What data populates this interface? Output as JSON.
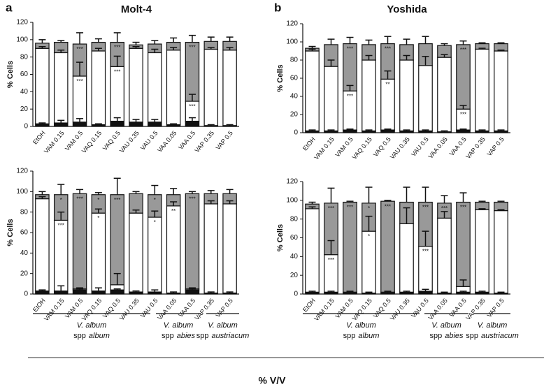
{
  "groups": [
    {
      "genus": "V. album",
      "rank": "spp",
      "name": "album"
    },
    {
      "genus": "V. album",
      "rank": "spp",
      "name": "abies"
    },
    {
      "genus": "V. album",
      "rank": "spp",
      "name": "austriacum"
    }
  ],
  "x_label": "% V/V",
  "chart_data": [
    {
      "type": "stacked_bar",
      "panel": "a",
      "title": "Molt-4",
      "y_label": "% Cells",
      "categories": [
        "EtOH",
        "VAM 0.15",
        "VAM 0.5",
        "VAQ 0.15",
        "VAQ 0.5",
        "VAU 0.35",
        "VAU 0.5",
        "VAA 0.05",
        "VAA 0.5",
        "VAP 0.35",
        "VAP 0.5"
      ],
      "ylim": [
        0,
        120
      ],
      "yticks": [
        0,
        20,
        40,
        60,
        80,
        100,
        120
      ],
      "series": [
        {
          "color": "#111111",
          "values": [
            3,
            4,
            5,
            2,
            6,
            5,
            5,
            2,
            6,
            1,
            1
          ],
          "errors": [
            1,
            3,
            4,
            1,
            4,
            3,
            3,
            1,
            4,
            1,
            1
          ]
        },
        {
          "color": "#ffffff",
          "values": [
            87,
            81,
            53,
            85,
            63,
            85,
            80,
            86,
            23,
            88,
            87
          ],
          "errors": [
            2,
            3,
            16,
            3,
            12,
            2,
            4,
            3,
            8,
            2,
            3
          ],
          "significance": [
            null,
            null,
            "***",
            null,
            "***",
            null,
            null,
            null,
            "***",
            null,
            null
          ]
        },
        {
          "color": "#999999",
          "values": [
            6,
            12,
            37,
            10,
            28,
            4,
            10,
            9,
            68,
            9,
            10
          ],
          "errors": [
            4,
            2,
            13,
            4,
            11,
            3,
            4,
            5,
            8,
            5,
            5
          ],
          "significance": [
            null,
            null,
            "***",
            null,
            "***",
            null,
            null,
            null,
            "***",
            null,
            null
          ]
        }
      ]
    },
    {
      "type": "stacked_bar",
      "panel": "b",
      "title": "Yoshida",
      "y_label": "% Cells",
      "categories": [
        "EtOH",
        "VAM 0.15",
        "VAM 0.5",
        "VAQ 0.15",
        "VAQ 0.5",
        "VAU 0.35",
        "VAU 0.5",
        "VAA 0.05",
        "VAA 0.5",
        "VAP 0.35",
        "VAP 0.5"
      ],
      "ylim": [
        0,
        120
      ],
      "yticks": [
        0,
        20,
        40,
        60,
        80,
        100,
        120
      ],
      "series": [
        {
          "color": "#111111",
          "values": [
            2,
            2,
            3,
            2,
            3,
            2,
            2,
            1,
            3,
            2,
            2
          ],
          "errors": [
            1,
            1,
            1,
            1,
            1,
            1,
            1,
            1,
            1,
            1,
            1
          ]
        },
        {
          "color": "#ffffff",
          "values": [
            88,
            71,
            43,
            78,
            56,
            78,
            72,
            82,
            23,
            90,
            88
          ],
          "errors": [
            2,
            7,
            6,
            5,
            9,
            5,
            10,
            3,
            4,
            1,
            1
          ],
          "significance": [
            null,
            null,
            "***",
            null,
            "**",
            null,
            null,
            null,
            "***",
            null,
            null
          ]
        },
        {
          "color": "#999999",
          "values": [
            3,
            24,
            52,
            17,
            39,
            17,
            24,
            13,
            71,
            6,
            8
          ],
          "errors": [
            2,
            6,
            7,
            5,
            8,
            6,
            8,
            2,
            4,
            1,
            1
          ],
          "significance": [
            null,
            null,
            "***",
            null,
            "***",
            null,
            null,
            null,
            "***",
            null,
            null
          ]
        }
      ]
    },
    {
      "type": "stacked_bar",
      "y_label": "% Cells",
      "categories": [
        "EtOH",
        "VAM 0.15",
        "VAM 0.5",
        "VAQ 0.15",
        "VAQ 0.5",
        "VAU 0.35",
        "VAU 0.5",
        "VAA 0.05",
        "VAA 0.5",
        "VAP 0.35",
        "VAP 0.5"
      ],
      "ylim": [
        0,
        120
      ],
      "yticks": [
        0,
        20,
        40,
        60,
        80,
        100,
        120
      ],
      "series": [
        {
          "color": "#111111",
          "values": [
            3,
            3,
            4,
            3,
            4,
            2,
            2,
            1,
            4,
            1,
            1
          ],
          "errors": [
            1,
            5,
            1,
            3,
            1,
            1,
            2,
            1,
            1,
            1,
            1
          ]
        },
        {
          "color": "#ffffff",
          "values": [
            90,
            69,
            1,
            76,
            5,
            77,
            73,
            85,
            1,
            87,
            87
          ],
          "errors": [
            2,
            8,
            1,
            4,
            11,
            3,
            6,
            4,
            1,
            3,
            3
          ],
          "significance": [
            null,
            "***",
            null,
            "*",
            null,
            null,
            "*",
            "**",
            null,
            null,
            null
          ]
        },
        {
          "color": "#999999",
          "values": [
            4,
            25,
            93,
            18,
            88,
            19,
            22,
            11,
            93,
            10,
            10
          ],
          "errors": [
            3,
            10,
            4,
            2,
            16,
            2,
            9,
            6,
            2,
            3,
            4
          ],
          "significance": [
            null,
            "*",
            "***",
            "*",
            "***",
            null,
            "*",
            null,
            "***",
            null,
            null
          ]
        }
      ]
    },
    {
      "type": "stacked_bar",
      "y_label": "% Cells",
      "categories": [
        "EtOH",
        "VAM 0.15",
        "VAM 0.5",
        "VAQ 0.15",
        "VAQ 0.5",
        "VAU 0.35",
        "VAU 0.5",
        "VAA 0.05",
        "VAA 0.5",
        "VAP 0.35",
        "VAP 0.5"
      ],
      "ylim": [
        0,
        120
      ],
      "yticks": [
        0,
        20,
        40,
        60,
        80,
        100,
        120
      ],
      "series": [
        {
          "color": "#111111",
          "values": [
            2,
            2,
            1,
            1,
            1,
            2,
            3,
            1,
            2,
            2,
            1
          ],
          "errors": [
            1,
            1,
            1,
            1,
            1,
            1,
            2,
            1,
            1,
            1,
            1
          ]
        },
        {
          "color": "#ffffff",
          "values": [
            89,
            40,
            1,
            66,
            1,
            73,
            48,
            80,
            6,
            88,
            88
          ],
          "errors": [
            2,
            15,
            1,
            16,
            1,
            17,
            16,
            7,
            7,
            1,
            1
          ],
          "significance": [
            null,
            "***",
            null,
            "*",
            null,
            null,
            "***",
            null,
            null,
            null,
            null
          ]
        },
        {
          "color": "#999999",
          "values": [
            5,
            55,
            96,
            30,
            97,
            23,
            47,
            16,
            90,
            8,
            9
          ],
          "errors": [
            2,
            16,
            1,
            17,
            1,
            16,
            16,
            8,
            10,
            1,
            1
          ],
          "significance": [
            null,
            "***",
            "***",
            "*",
            "***",
            null,
            "***",
            "***",
            "***",
            null,
            null
          ]
        }
      ]
    }
  ]
}
